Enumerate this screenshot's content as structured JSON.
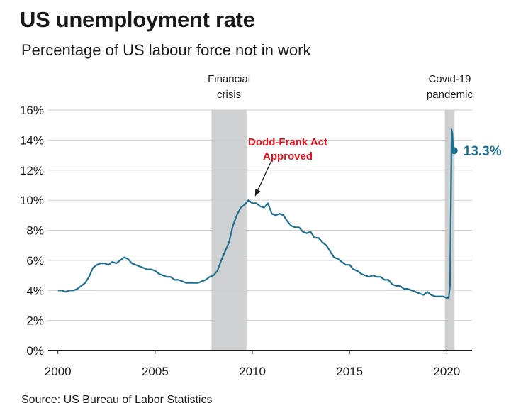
{
  "chart_data": {
    "type": "line",
    "title": "US unemployment rate",
    "subtitle": "Percentage of US labour force not in work",
    "source": "Source: US Bureau of Labor Statistics",
    "ylabel": "",
    "xlabel": "",
    "xlim": [
      1999.5,
      2021.3
    ],
    "ylim": [
      0,
      16
    ],
    "y_ticks": [
      0,
      2,
      4,
      6,
      8,
      10,
      12,
      14,
      16
    ],
    "y_tick_format": "%",
    "x_ticks": [
      2000,
      2005,
      2010,
      2015,
      2020
    ],
    "grid": true,
    "colors": {
      "line": "#1f6f8f",
      "shade": "#cfd0d2",
      "annotation": "#e8101a",
      "grid": "#cccccc"
    },
    "shaded_periods": [
      {
        "label_lines": [
          "Financial",
          "crisis"
        ],
        "start": 2007.9,
        "end": 2009.7
      },
      {
        "label_lines": [
          "Covid-19",
          "pandemic"
        ],
        "start": 2019.9,
        "end": 2020.4
      }
    ],
    "annotations": [
      {
        "label_lines": [
          "Dodd-Frank Act",
          "Approved"
        ],
        "x": 2010.0,
        "y": 10.0
      }
    ],
    "end_label": {
      "text": "13.3%",
      "x": 2020.38,
      "y": 13.3
    },
    "series": [
      {
        "x": [
          2000.0,
          2000.2,
          2000.4,
          2000.6,
          2000.8,
          2001.0,
          2001.2,
          2001.4,
          2001.6,
          2001.8,
          2002.0,
          2002.2,
          2002.4,
          2002.6,
          2002.8,
          2003.0,
          2003.2,
          2003.4,
          2003.6,
          2003.8,
          2004.0,
          2004.2,
          2004.4,
          2004.6,
          2004.8,
          2005.0,
          2005.2,
          2005.4,
          2005.6,
          2005.8,
          2006.0,
          2006.2,
          2006.4,
          2006.6,
          2006.8,
          2007.0,
          2007.2,
          2007.4,
          2007.6,
          2007.8,
          2008.0,
          2008.2,
          2008.4,
          2008.6,
          2008.8,
          2009.0,
          2009.2,
          2009.4,
          2009.6,
          2009.8,
          2010.0,
          2010.2,
          2010.4,
          2010.6,
          2010.8,
          2011.0,
          2011.2,
          2011.4,
          2011.6,
          2011.8,
          2012.0,
          2012.2,
          2012.4,
          2012.6,
          2012.8,
          2013.0,
          2013.2,
          2013.4,
          2013.6,
          2013.8,
          2014.0,
          2014.2,
          2014.4,
          2014.6,
          2014.8,
          2015.0,
          2015.2,
          2015.4,
          2015.6,
          2015.8,
          2016.0,
          2016.2,
          2016.4,
          2016.6,
          2016.8,
          2017.0,
          2017.2,
          2017.4,
          2017.6,
          2017.8,
          2018.0,
          2018.2,
          2018.4,
          2018.6,
          2018.8,
          2019.0,
          2019.2,
          2019.4,
          2019.6,
          2019.8,
          2020.0,
          2020.1,
          2020.17,
          2020.25,
          2020.29,
          2020.33,
          2020.38
        ],
        "y": [
          4.0,
          4.0,
          3.9,
          4.0,
          4.0,
          4.1,
          4.3,
          4.5,
          4.9,
          5.5,
          5.7,
          5.8,
          5.8,
          5.7,
          5.9,
          5.8,
          6.0,
          6.2,
          6.1,
          5.8,
          5.7,
          5.6,
          5.5,
          5.4,
          5.4,
          5.3,
          5.1,
          5.0,
          4.9,
          4.9,
          4.7,
          4.7,
          4.6,
          4.5,
          4.5,
          4.5,
          4.5,
          4.6,
          4.7,
          4.9,
          5.0,
          5.3,
          6.0,
          6.6,
          7.2,
          8.3,
          9.0,
          9.5,
          9.7,
          10.0,
          9.8,
          9.8,
          9.6,
          9.5,
          9.8,
          9.1,
          9.0,
          9.1,
          9.0,
          8.6,
          8.3,
          8.2,
          8.2,
          7.9,
          7.8,
          7.9,
          7.5,
          7.5,
          7.2,
          7.0,
          6.6,
          6.2,
          6.1,
          5.9,
          5.7,
          5.7,
          5.4,
          5.3,
          5.1,
          5.0,
          4.9,
          5.0,
          4.9,
          4.9,
          4.7,
          4.7,
          4.4,
          4.3,
          4.3,
          4.1,
          4.1,
          4.0,
          3.9,
          3.8,
          3.7,
          3.9,
          3.7,
          3.6,
          3.6,
          3.6,
          3.5,
          3.5,
          4.4,
          14.7,
          14.4,
          13.3,
          13.3
        ]
      }
    ]
  }
}
